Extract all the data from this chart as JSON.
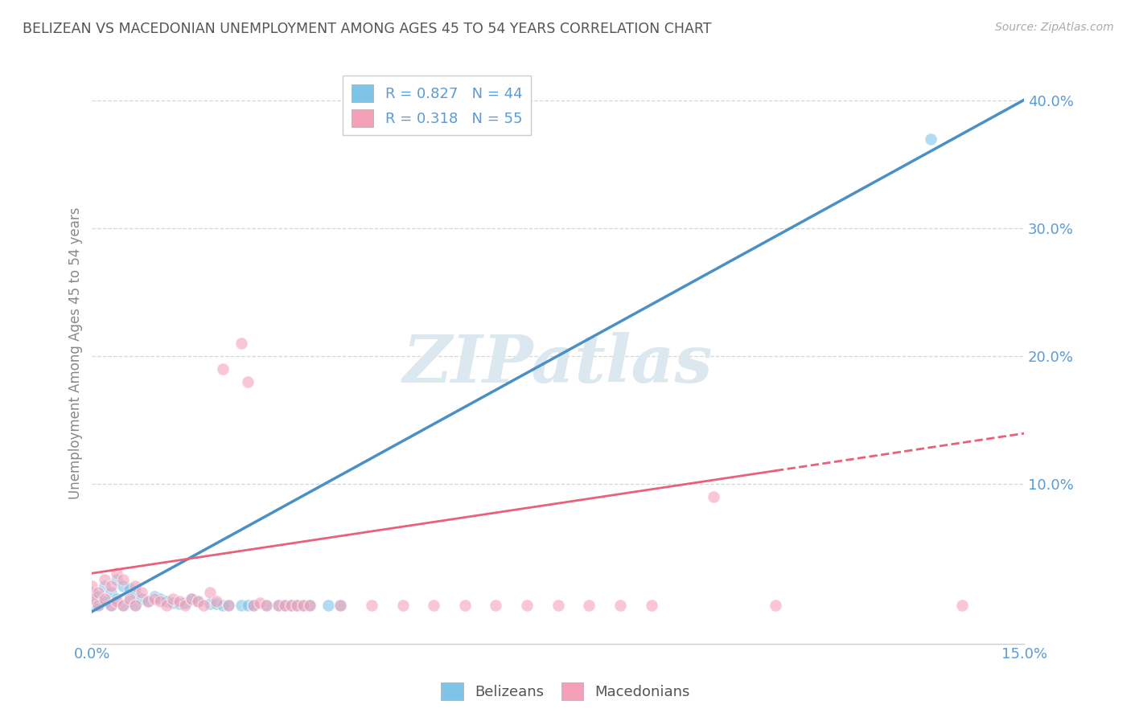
{
  "title": "BELIZEAN VS MACEDONIAN UNEMPLOYMENT AMONG AGES 45 TO 54 YEARS CORRELATION CHART",
  "source": "Source: ZipAtlas.com",
  "ylabel_label": "Unemployment Among Ages 45 to 54 years",
  "belizean_R": 0.827,
  "belizean_N": 44,
  "macedonian_R": 0.318,
  "macedonian_N": 55,
  "xlim": [
    0.0,
    0.15
  ],
  "ylim": [
    -0.025,
    0.43
  ],
  "belizean_color": "#7dc4e8",
  "macedonian_color": "#f4a0b8",
  "belizean_line_color": "#4a90c4",
  "macedonian_line_color": "#e8607a",
  "watermark_color": "#dce8f0",
  "title_color": "#555555",
  "tick_color": "#5b9bd5",
  "grid_color": "#cccccc",
  "bel_x": [
    0.0,
    0.0,
    0.0,
    0.001,
    0.001,
    0.002,
    0.002,
    0.003,
    0.003,
    0.004,
    0.004,
    0.005,
    0.005,
    0.006,
    0.006,
    0.007,
    0.007,
    0.008,
    0.009,
    0.01,
    0.011,
    0.012,
    0.013,
    0.014,
    0.015,
    0.016,
    0.017,
    0.019,
    0.02,
    0.021,
    0.022,
    0.024,
    0.025,
    0.026,
    0.028,
    0.03,
    0.031,
    0.032,
    0.033,
    0.034,
    0.035,
    0.038,
    0.04,
    0.135
  ],
  "bel_y": [
    0.005,
    0.01,
    0.015,
    0.005,
    0.012,
    0.008,
    0.02,
    0.005,
    0.015,
    0.01,
    0.025,
    0.005,
    0.02,
    0.008,
    0.018,
    0.005,
    0.015,
    0.01,
    0.008,
    0.012,
    0.01,
    0.008,
    0.007,
    0.006,
    0.007,
    0.01,
    0.008,
    0.006,
    0.006,
    0.005,
    0.005,
    0.005,
    0.005,
    0.005,
    0.005,
    0.005,
    0.005,
    0.005,
    0.005,
    0.005,
    0.005,
    0.005,
    0.005,
    0.37
  ],
  "mac_x": [
    0.0,
    0.0,
    0.001,
    0.001,
    0.002,
    0.002,
    0.003,
    0.003,
    0.004,
    0.004,
    0.005,
    0.005,
    0.006,
    0.007,
    0.007,
    0.008,
    0.009,
    0.01,
    0.011,
    0.012,
    0.013,
    0.014,
    0.015,
    0.016,
    0.017,
    0.018,
    0.019,
    0.02,
    0.021,
    0.022,
    0.024,
    0.025,
    0.026,
    0.027,
    0.028,
    0.03,
    0.031,
    0.032,
    0.033,
    0.034,
    0.035,
    0.04,
    0.045,
    0.05,
    0.055,
    0.06,
    0.065,
    0.07,
    0.075,
    0.08,
    0.085,
    0.09,
    0.1,
    0.11,
    0.14
  ],
  "mac_y": [
    0.01,
    0.02,
    0.005,
    0.015,
    0.01,
    0.025,
    0.005,
    0.02,
    0.008,
    0.03,
    0.005,
    0.025,
    0.01,
    0.005,
    0.02,
    0.015,
    0.008,
    0.01,
    0.008,
    0.005,
    0.01,
    0.008,
    0.005,
    0.01,
    0.008,
    0.005,
    0.015,
    0.008,
    0.19,
    0.005,
    0.21,
    0.18,
    0.005,
    0.007,
    0.005,
    0.005,
    0.005,
    0.005,
    0.005,
    0.005,
    0.005,
    0.005,
    0.005,
    0.005,
    0.005,
    0.005,
    0.005,
    0.005,
    0.005,
    0.005,
    0.005,
    0.005,
    0.09,
    0.005,
    0.005
  ]
}
